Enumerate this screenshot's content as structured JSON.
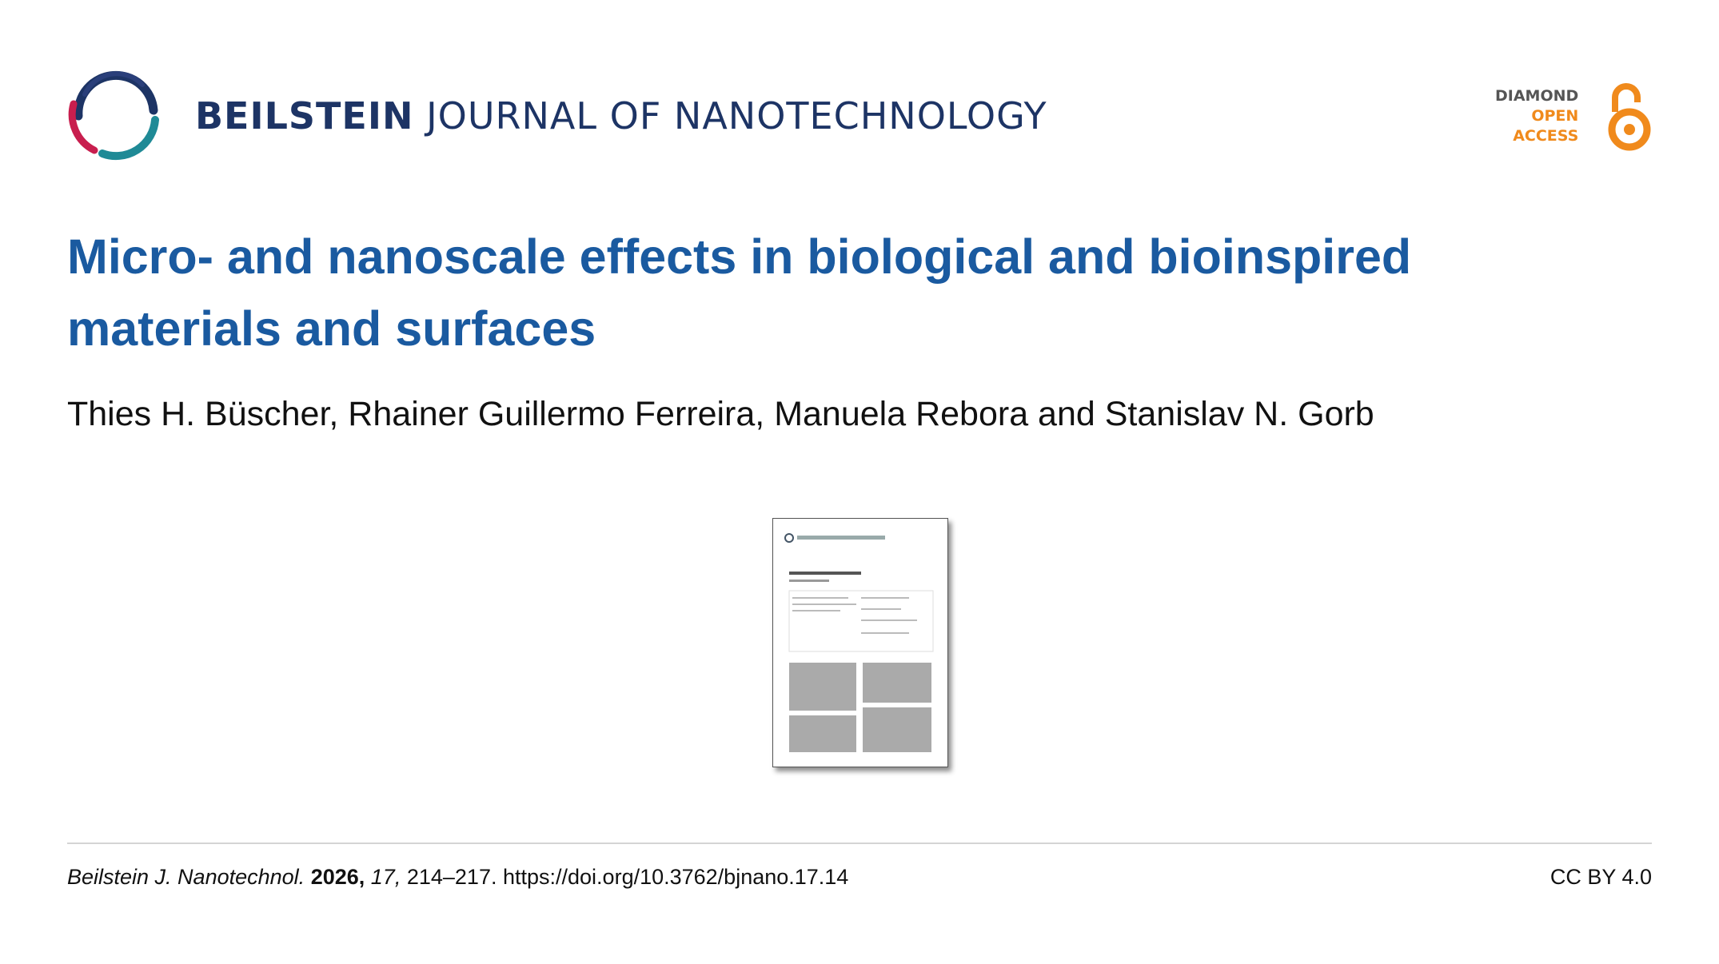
{
  "header": {
    "journal_name_bold": "BEILSTEIN",
    "journal_name_rest": "JOURNAL OF NANOTECHNOLOGY",
    "badge": [
      "DIAMOND",
      "OPEN",
      "ACCESS"
    ]
  },
  "article": {
    "title": "Micro- and nanoscale effects in biological and bioinspired materials and surfaces",
    "authors": "Thies H. Büscher, Rhainer Guillermo Ferreira, Manuela Rebora and Stanislav N. Gorb"
  },
  "footer": {
    "journal": "Beilstein J. Nanotechnol.",
    "year": "2026,",
    "volume": "17,",
    "pages": "214–217.",
    "doi": "https://doi.org/10.3762/bjnano.17.14",
    "license": "CC BY 4.0"
  }
}
